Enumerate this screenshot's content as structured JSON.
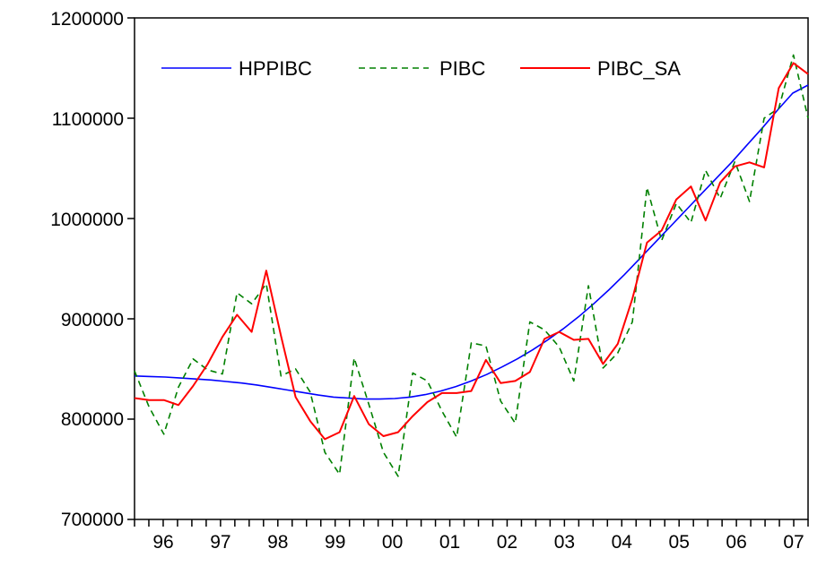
{
  "chart_data": {
    "type": "line",
    "title": "",
    "xlabel": "",
    "ylabel": "",
    "x_start_quarter": "1996Q1",
    "x_tick_labels": [
      "96",
      "97",
      "98",
      "99",
      "00",
      "01",
      "02",
      "03",
      "04",
      "05",
      "06",
      "07"
    ],
    "y_tick_labels": [
      "700000",
      "800000",
      "900000",
      "1000000",
      "1100000",
      "1200000"
    ],
    "ylim": [
      700000,
      1200000
    ],
    "grid": false,
    "legend_placement": "top-left",
    "series": [
      {
        "name": "HPPIBC",
        "color": "#0000ff",
        "style": "solid",
        "values": [
          843000,
          842500,
          842000,
          841000,
          840000,
          839000,
          837500,
          836000,
          834000,
          831500,
          829000,
          826500,
          824000,
          822000,
          821000,
          820000,
          820000,
          820500,
          822000,
          824500,
          828000,
          832500,
          838000,
          844500,
          852000,
          860000,
          869000,
          879000,
          890000,
          902000,
          915000,
          929000,
          944000,
          960000,
          976000,
          992000,
          1008000,
          1024000,
          1040000,
          1056000,
          1073000,
          1090000,
          1108000,
          1125000,
          1133000
        ]
      },
      {
        "name": "PIBC",
        "color": "#008000",
        "style": "dashed",
        "values": [
          848000,
          812000,
          785000,
          832000,
          860000,
          849000,
          845000,
          926000,
          915000,
          935000,
          843000,
          850000,
          827000,
          767000,
          745000,
          861000,
          815000,
          767000,
          743000,
          846000,
          838000,
          808000,
          782000,
          876000,
          873000,
          818000,
          796000,
          897000,
          889000,
          872000,
          838000,
          933000,
          851000,
          866000,
          897000,
          1031000,
          978000,
          1015000,
          996000,
          1048000,
          1020000,
          1057000,
          1017000,
          1100000,
          1110000,
          1163000,
          1100000
        ]
      },
      {
        "name": "PIBC_SA",
        "color": "#ff0000",
        "style": "solid",
        "values": [
          821000,
          819000,
          819000,
          814000,
          833000,
          855000,
          882000,
          904000,
          887000,
          948000,
          883000,
          822000,
          798000,
          780000,
          787000,
          823000,
          795000,
          783000,
          787000,
          803000,
          817000,
          826000,
          826000,
          828000,
          859000,
          836000,
          838000,
          847000,
          880000,
          887000,
          879000,
          880000,
          855000,
          875000,
          920000,
          976000,
          988000,
          1019000,
          1032000,
          998000,
          1036000,
          1052000,
          1056000,
          1051000,
          1130000,
          1155000,
          1144000
        ]
      }
    ]
  }
}
